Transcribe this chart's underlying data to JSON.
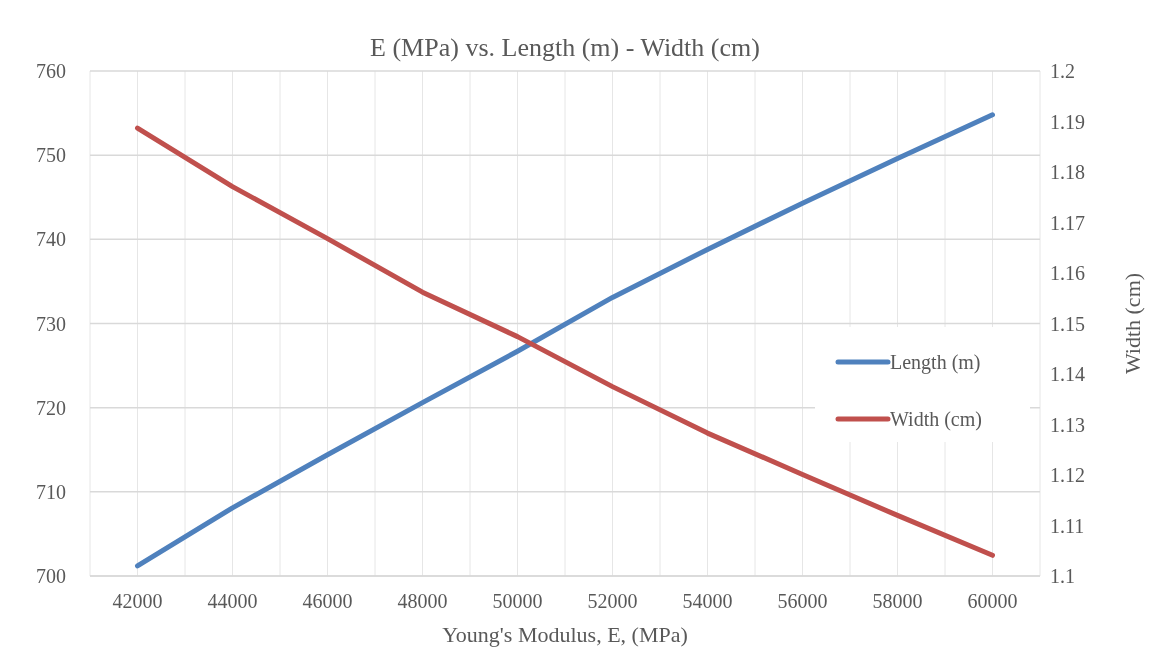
{
  "chart_data": {
    "type": "line",
    "title": "E (MPa) vs. Length (m) - Width (cm)",
    "xlabel": "Young's Modulus, E, (MPa)",
    "y2label": "Width (cm)",
    "x": [
      42000,
      44000,
      46000,
      48000,
      50000,
      52000,
      54000,
      56000,
      58000,
      60000
    ],
    "series": [
      {
        "name": "Length (m)",
        "color": "#4f81bd",
        "values": [
          701.2,
          708.1,
          714.4,
          720.6,
          726.7,
          733.1,
          738.8,
          744.3,
          749.6,
          754.8
        ]
      },
      {
        "name": "Width (cm)",
        "color": "#c0504d",
        "axis": "y2",
        "values": [
          1.1887,
          1.1771,
          1.1668,
          1.1562,
          1.1474,
          1.1375,
          1.1283,
          1.1201,
          1.112,
          1.1041
        ]
      }
    ],
    "xlim": [
      41000,
      61000
    ],
    "xticks": [
      {
        "value": 41000,
        "label": null
      },
      42000,
      {
        "value": 43000,
        "label": null
      },
      44000,
      {
        "value": 45000,
        "label": null
      },
      46000,
      {
        "value": 47000,
        "label": null
      },
      48000,
      {
        "value": 49000,
        "label": null
      },
      50000,
      {
        "value": 51000,
        "label": null
      },
      52000,
      {
        "value": 53000,
        "label": null
      },
      54000,
      {
        "value": 55000,
        "label": null
      },
      56000,
      {
        "value": 57000,
        "label": null
      },
      58000,
      {
        "value": 59000,
        "label": null
      },
      60000,
      {
        "value": 61000,
        "label": null
      }
    ],
    "ylim": [
      700,
      760
    ],
    "yticks": [
      700,
      710,
      720,
      730,
      740,
      750,
      760
    ],
    "y2lim": [
      1.1,
      1.2
    ],
    "y2ticks": [
      {
        "value": 1.1,
        "label": "1.1"
      },
      1.11,
      1.12,
      1.13,
      1.14,
      1.15,
      1.16,
      1.17,
      1.18,
      1.19,
      {
        "value": 1.2,
        "label": "1.2"
      }
    ],
    "grid": true,
    "legend": "right",
    "line_style": "solid",
    "marker": "none"
  }
}
